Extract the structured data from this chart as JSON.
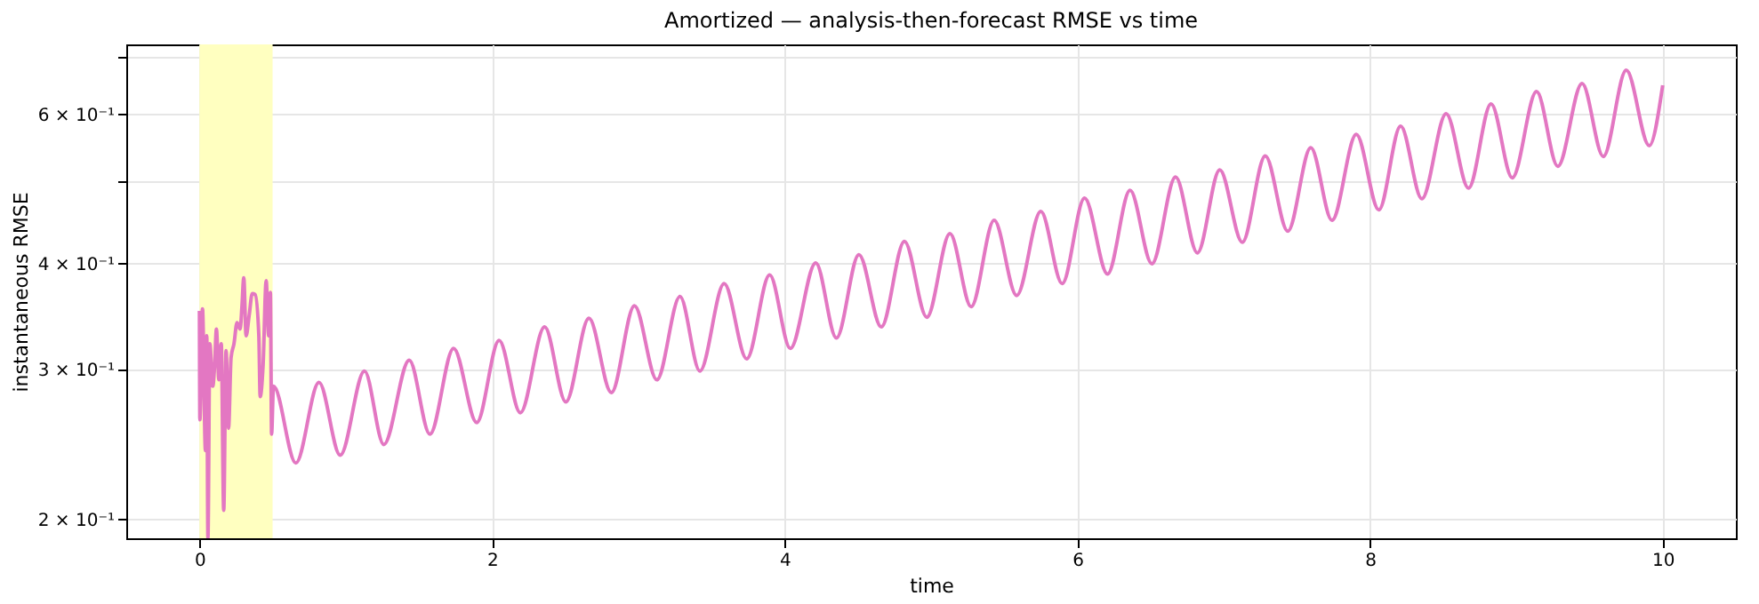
{
  "chart_data": {
    "type": "line",
    "title": "Amortized — analysis-then-forecast RMSE vs time",
    "xlabel": "time",
    "ylabel": "instantaneous RMSE",
    "log": "y",
    "grid": true,
    "line_style": "solid",
    "marker": "none",
    "xlim": [
      -0.5,
      10.5
    ],
    "xticks": [
      0,
      2,
      4,
      6,
      8,
      10
    ],
    "ylim": [
      0.19,
      0.725
    ],
    "yticks": [
      {
        "value": 0.2,
        "label": "2 × 10⁻¹"
      },
      {
        "value": 0.3,
        "label": "3 × 10⁻¹"
      },
      {
        "value": 0.4,
        "label": "4 × 10⁻¹"
      },
      {
        "value": 0.5,
        "label": null
      },
      {
        "value": 0.6,
        "label": "6 × 10⁻¹"
      },
      {
        "value": 0.7,
        "label": null
      }
    ],
    "bands": [
      {
        "axis": "x",
        "from": 0,
        "to": 0.5,
        "color": "#ffffc0"
      }
    ],
    "series": [
      {
        "color": "#e377c2",
        "x": [
          0.0,
          0.003,
          0.021,
          0.041,
          0.05,
          0.058,
          0.071,
          0.091,
          0.104,
          0.116,
          0.133,
          0.149,
          0.166,
          0.182,
          0.199,
          0.216,
          0.236,
          0.257,
          0.278,
          0.29,
          0.303,
          0.319,
          0.34,
          0.361,
          0.381,
          0.406,
          0.415,
          0.435,
          0.456,
          0.473,
          0.485,
          0.493,
          0.506,
          0.659,
          0.817,
          0.962,
          1.128,
          1.26,
          1.434,
          1.575,
          1.737,
          1.895,
          2.048,
          2.193,
          2.359,
          2.504,
          2.662,
          2.815,
          2.973,
          3.126,
          3.284,
          3.42,
          3.586,
          3.74,
          3.897,
          4.038,
          4.212,
          4.353,
          4.507,
          4.66,
          4.818,
          4.971,
          5.129,
          5.274,
          5.431,
          5.585,
          5.75,
          5.896,
          6.049,
          6.206,
          6.36,
          6.509,
          6.671,
          6.82,
          6.973,
          7.127,
          7.284,
          7.438,
          7.595,
          7.74,
          7.906,
          8.06,
          8.209,
          8.354,
          8.52,
          8.673,
          8.827,
          8.972,
          9.138,
          9.283,
          9.449,
          9.594,
          9.751,
          9.908,
          10.0
        ],
        "values": [
          0.352,
          0.262,
          0.354,
          0.241,
          0.329,
          0.19,
          0.322,
          0.287,
          0.304,
          0.335,
          0.292,
          0.322,
          0.205,
          0.316,
          0.256,
          0.31,
          0.322,
          0.341,
          0.335,
          0.355,
          0.385,
          0.329,
          0.348,
          0.369,
          0.368,
          0.329,
          0.279,
          0.304,
          0.382,
          0.329,
          0.37,
          0.252,
          0.287,
          0.233,
          0.29,
          0.238,
          0.299,
          0.245,
          0.308,
          0.252,
          0.318,
          0.26,
          0.325,
          0.267,
          0.337,
          0.275,
          0.345,
          0.282,
          0.357,
          0.292,
          0.366,
          0.299,
          0.379,
          0.309,
          0.388,
          0.318,
          0.401,
          0.327,
          0.41,
          0.337,
          0.425,
          0.346,
          0.434,
          0.356,
          0.45,
          0.367,
          0.461,
          0.379,
          0.478,
          0.389,
          0.488,
          0.4,
          0.506,
          0.412,
          0.516,
          0.424,
          0.536,
          0.437,
          0.548,
          0.45,
          0.568,
          0.463,
          0.581,
          0.477,
          0.601,
          0.491,
          0.617,
          0.505,
          0.638,
          0.521,
          0.652,
          0.535,
          0.676,
          0.551,
          0.649
        ]
      }
    ]
  }
}
